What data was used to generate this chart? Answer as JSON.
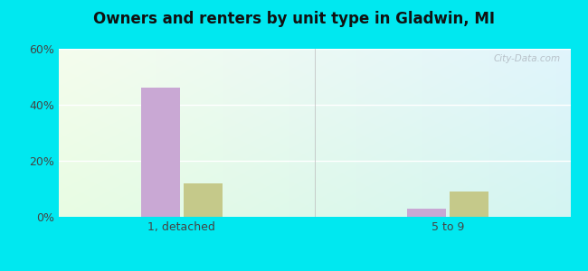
{
  "title": "Owners and renters by unit type in Gladwin, MI",
  "categories": [
    "1, detached",
    "5 to 9"
  ],
  "owner_values": [
    46.0,
    3.0
  ],
  "renter_values": [
    12.0,
    9.0
  ],
  "owner_color": "#c9a8d4",
  "renter_color": "#c5c98a",
  "ylim": [
    0,
    60
  ],
  "yticks": [
    0,
    20,
    40,
    60
  ],
  "ytick_labels": [
    "0%",
    "20%",
    "40%",
    "60%"
  ],
  "bg_outer": "#00e8f0",
  "bar_width": 0.38,
  "group_positions": [
    1.2,
    3.8
  ],
  "watermark": "City-Data.com",
  "xlim": [
    0,
    5.0
  ]
}
